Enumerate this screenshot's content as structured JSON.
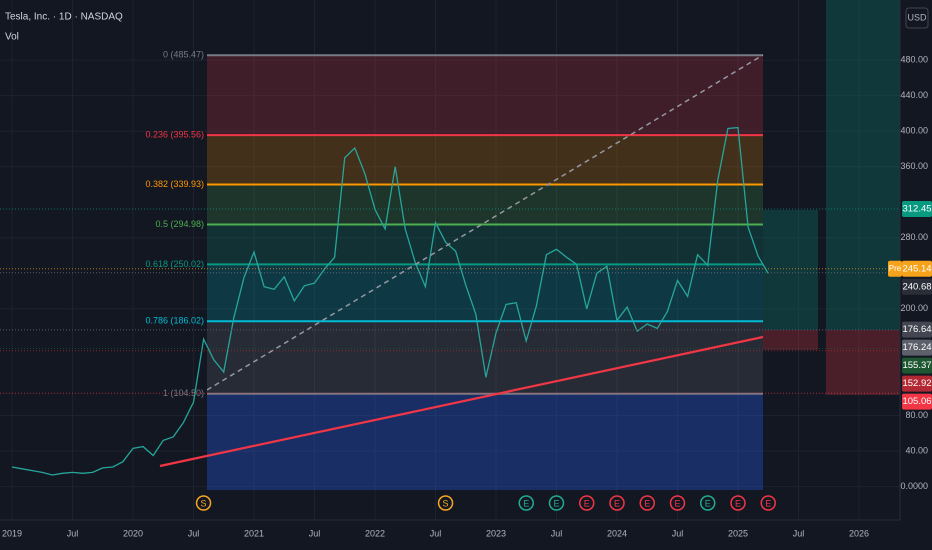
{
  "chart_data": {
    "type": "line",
    "header": "Tesla, Inc. · 1D · NASDAQ",
    "indicator": "Vol",
    "currency": "USD",
    "grid": true,
    "ylim": [
      -37.6,
      547.6
    ],
    "yticks": [
      {
        "value": 480,
        "label": "480.00"
      },
      {
        "value": 440,
        "label": "440.00"
      },
      {
        "value": 400,
        "label": "400.00"
      },
      {
        "value": 360,
        "label": "360.00"
      },
      {
        "value": 280,
        "label": "280.00"
      },
      {
        "value": 200,
        "label": "200.00"
      },
      {
        "value": 80,
        "label": "80.00"
      },
      {
        "value": 40,
        "label": "40.00"
      },
      {
        "value": 0,
        "label": "0.0000"
      }
    ],
    "xticks": [
      {
        "value": "2019-01",
        "label": "2019"
      },
      {
        "value": "2019-07",
        "label": "Jul"
      },
      {
        "value": "2020-01",
        "label": "2020"
      },
      {
        "value": "2020-07",
        "label": "Jul"
      },
      {
        "value": "2021-01",
        "label": "2021"
      },
      {
        "value": "2021-07",
        "label": "Jul"
      },
      {
        "value": "2022-01",
        "label": "2022"
      },
      {
        "value": "2022-07",
        "label": "Jul"
      },
      {
        "value": "2023-01",
        "label": "2023"
      },
      {
        "value": "2023-07",
        "label": "Jul"
      },
      {
        "value": "2024-01",
        "label": "2024"
      },
      {
        "value": "2024-07",
        "label": "Jul"
      },
      {
        "value": "2025-01",
        "label": "2025"
      },
      {
        "value": "2025-07",
        "label": "Jul"
      },
      {
        "value": "2026-01",
        "label": "2026"
      }
    ],
    "x": [
      "2019-01",
      "2019-02",
      "2019-03",
      "2019-04",
      "2019-05",
      "2019-06",
      "2019-07",
      "2019-08",
      "2019-09",
      "2019-10",
      "2019-11",
      "2019-12",
      "2020-01",
      "2020-02",
      "2020-03",
      "2020-04",
      "2020-05",
      "2020-06",
      "2020-07",
      "2020-08",
      "2020-09",
      "2020-10",
      "2020-11",
      "2020-12",
      "2021-01",
      "2021-02",
      "2021-03",
      "2021-04",
      "2021-05",
      "2021-06",
      "2021-07",
      "2021-08",
      "2021-09",
      "2021-10",
      "2021-11",
      "2021-12",
      "2022-01",
      "2022-02",
      "2022-03",
      "2022-04",
      "2022-05",
      "2022-06",
      "2022-07",
      "2022-08",
      "2022-09",
      "2022-10",
      "2022-11",
      "2022-12",
      "2023-01",
      "2023-02",
      "2023-03",
      "2023-04",
      "2023-05",
      "2023-06",
      "2023-07",
      "2023-08",
      "2023-09",
      "2023-10",
      "2023-11",
      "2023-12",
      "2024-01",
      "2024-02",
      "2024-03",
      "2024-04",
      "2024-05",
      "2024-06",
      "2024-07",
      "2024-08",
      "2024-09",
      "2024-10",
      "2024-11",
      "2024-12",
      "2025-01",
      "2025-02",
      "2025-03",
      "2025-04"
    ],
    "series": [
      {
        "color": "#26a69a",
        "values": [
          22,
          20,
          18,
          16,
          13,
          15,
          16,
          15,
          16,
          21,
          22,
          28,
          43,
          45,
          35,
          52,
          56,
          72,
          95,
          166,
          143,
          129,
          190,
          235,
          264,
          225,
          222,
          236,
          209,
          226,
          229,
          245,
          258,
          370,
          381,
          352,
          312,
          290,
          360,
          290,
          252,
          225,
          297,
          275,
          265,
          227,
          194,
          123,
          173,
          205,
          207,
          164,
          203,
          261,
          267,
          258,
          250,
          200,
          240,
          248,
          187,
          202,
          175,
          183,
          178,
          197,
          232,
          214,
          261,
          249,
          345,
          403,
          404,
          292,
          259,
          240
        ]
      }
    ],
    "fib_levels": [
      {
        "label": "0 (485.47)",
        "value": 485.47,
        "color": "#787b86"
      },
      {
        "label": "0.236 (395.56)",
        "value": 395.56,
        "color": "#f23645"
      },
      {
        "label": "0.382 (339.93)",
        "value": 339.93,
        "color": "#ff9800"
      },
      {
        "label": "0.5 (294.98)",
        "value": 294.98,
        "color": "#4caf50"
      },
      {
        "label": "0.618 (250.02)",
        "value": 250.02,
        "color": "#089981"
      },
      {
        "label": "0.786 (186.02)",
        "value": 186.02,
        "color": "#00bcd4"
      },
      {
        "label": "1 (104.50)",
        "value": 104.5,
        "color": "#787b86"
      }
    ],
    "price_tags": [
      {
        "value": 312.45,
        "color": "#089981"
      },
      {
        "prefix": "Pre",
        "value": 245.14,
        "color": "#f7a21b"
      },
      {
        "value": 240.68,
        "color": "#2a2e39"
      },
      {
        "value": 176.64,
        "color": "#434651"
      },
      {
        "value": 176.24,
        "color": "#5d606b"
      },
      {
        "value": 155.37,
        "color": "#1e5631"
      },
      {
        "value": 152.92,
        "color": "#b22833"
      },
      {
        "value": 105.06,
        "color": "#f23645"
      }
    ],
    "events": [
      {
        "date": "2020-08",
        "label": "S",
        "color": "#f5a623"
      },
      {
        "date": "2022-08",
        "label": "S",
        "color": "#f5a623"
      },
      {
        "date": "2023-04",
        "label": "E",
        "color": "#22ab94"
      },
      {
        "date": "2023-07",
        "label": "E",
        "color": "#22ab94"
      },
      {
        "date": "2023-10",
        "label": "E",
        "color": "#f23645"
      },
      {
        "date": "2024-01",
        "label": "E",
        "color": "#f23645"
      },
      {
        "date": "2024-04",
        "label": "E",
        "color": "#f23645"
      },
      {
        "date": "2024-07",
        "label": "E",
        "color": "#f23645"
      },
      {
        "date": "2024-10",
        "label": "E",
        "color": "#22ab94"
      },
      {
        "date": "2025-01",
        "label": "E",
        "color": "#f23645"
      },
      {
        "date": "2025-04",
        "label": "E",
        "color": "#f23645"
      }
    ]
  }
}
